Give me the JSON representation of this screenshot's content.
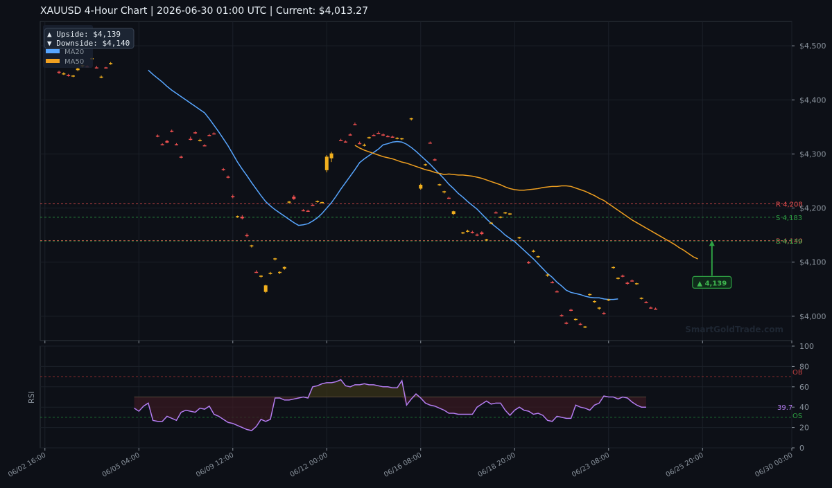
{
  "title": "XAUUSD  4-Hour Chart  |  2026-06-30 01:00 UTC  |  Current: $4,013.27",
  "watermark": "SmartGoldTrade.com",
  "info_box": {
    "upside": "▲ Upside:   $4,139",
    "downside": "▼ Downside: $4,140"
  },
  "legend": [
    {
      "label": "MA20",
      "color": "#58a6ff"
    },
    {
      "label": "MA50",
      "color": "#f0a020"
    }
  ],
  "colors": {
    "up": "#f2b01e",
    "down": "#f05050",
    "ma20": "#58a6ff",
    "ma50": "#f0a020",
    "rsi": "#b37cf0",
    "support": "#2ea043",
    "resistance": "#f05050"
  },
  "chart_data": [
    {
      "type": "candlestick",
      "ylabel": "",
      "ylim": [
        3955,
        4545
      ],
      "y_ticks": [
        {
          "value": 4000,
          "label": "$4,000"
        },
        {
          "value": 4100,
          "label": "$4,100"
        },
        {
          "value": 4200,
          "label": "$4,200"
        },
        {
          "value": 4300,
          "label": "$4,300"
        },
        {
          "value": 4400,
          "label": "$4,400"
        },
        {
          "value": 4500,
          "label": "$4,500"
        }
      ],
      "x_range": [
        -1,
        159
      ],
      "x_ticks": [
        {
          "index": 0,
          "label": "06/02 16:00"
        },
        {
          "index": 20,
          "label": "06/05 04:00"
        },
        {
          "index": 40,
          "label": "06/09 12:00"
        },
        {
          "index": 60,
          "label": "06/12 00:00"
        },
        {
          "index": 80,
          "label": "06/16 08:00"
        },
        {
          "index": 100,
          "label": "06/18 20:00"
        },
        {
          "index": 120,
          "label": "06/23 08:00"
        },
        {
          "index": 140,
          "label": "06/25 20:00"
        },
        {
          "index": 159,
          "label": "06/30 00:00"
        }
      ],
      "levels": [
        {
          "label": "R 4,208",
          "value": 4208,
          "kind": "resistance"
        },
        {
          "label": "S 4,183",
          "value": 4183,
          "kind": "support"
        },
        {
          "label": "R 4,140",
          "value": 4140,
          "kind": "resistance"
        },
        {
          "label": "S 4,139",
          "value": 4139,
          "kind": "support"
        }
      ],
      "target_marker": {
        "label": "▲ 4,139",
        "index": 142,
        "value": 4139
      },
      "candles": [
        [
          4452,
          4454,
          4448,
          4450
        ],
        [
          4448,
          4451,
          4446,
          4449
        ],
        [
          4446,
          4448,
          4443,
          4444
        ],
        [
          4444,
          4446,
          4442,
          4445
        ],
        [
          4455,
          4460,
          4453,
          4458
        ],
        [
          4462,
          4465,
          4460,
          4464
        ],
        [
          4462,
          4464,
          4460,
          4461
        ],
        [
          4476,
          4478,
          4474,
          4477
        ],
        [
          4460,
          4463,
          4458,
          4459
        ],
        [
          4442,
          4445,
          4440,
          4443
        ],
        [
          4460,
          4461,
          4458,
          4459
        ],
        [
          4467,
          4470,
          4465,
          4468
        ],
        [
          4334,
          4336,
          4331,
          4332
        ],
        [
          4318,
          4320,
          4316,
          4317
        ],
        [
          4324,
          4326,
          4320,
          4321
        ],
        [
          4343,
          4345,
          4340,
          4341
        ],
        [
          4318,
          4320,
          4316,
          4317
        ],
        [
          4295,
          4297,
          4292,
          4294
        ],
        [
          4328,
          4332,
          4325,
          4327
        ],
        [
          4340,
          4342,
          4337,
          4338
        ],
        [
          4325,
          4328,
          4323,
          4326
        ],
        [
          4316,
          4318,
          4314,
          4315
        ],
        [
          4335,
          4337,
          4333,
          4334
        ],
        [
          4338,
          4340,
          4336,
          4337
        ],
        [
          4272,
          4274,
          4269,
          4270
        ],
        [
          4258,
          4260,
          4255,
          4257
        ],
        [
          4222,
          4225,
          4218,
          4220
        ],
        [
          4184,
          4186,
          4182,
          4185
        ],
        [
          4184,
          4187,
          4179,
          4181
        ],
        [
          4150,
          4153,
          4146,
          4149
        ],
        [
          4130,
          4132,
          4127,
          4131
        ],
        [
          4082,
          4085,
          4080,
          4081
        ],
        [
          4073,
          4076,
          4071,
          4075
        ],
        [
          4045,
          4058,
          4043,
          4057
        ],
        [
          4079,
          4082,
          4077,
          4080
        ],
        [
          4105,
          4108,
          4103,
          4107
        ],
        [
          4080,
          4083,
          4078,
          4082
        ],
        [
          4088,
          4092,
          4086,
          4091
        ],
        [
          4210,
          4213,
          4208,
          4212
        ],
        [
          4221,
          4224,
          4215,
          4217
        ],
        [
          4196,
          4198,
          4194,
          4195
        ],
        [
          4195,
          4197,
          4193,
          4194
        ],
        [
          4206,
          4208,
          4204,
          4205
        ],
        [
          4212,
          4214,
          4210,
          4213
        ],
        [
          4210,
          4212,
          4208,
          4211
        ],
        [
          4270,
          4298,
          4266,
          4295
        ],
        [
          4292,
          4304,
          4285,
          4301
        ],
        [
          4326,
          4328,
          4324,
          4325
        ],
        [
          4323,
          4325,
          4321,
          4322
        ],
        [
          4336,
          4338,
          4334,
          4335
        ],
        [
          4355,
          4358,
          4353,
          4354
        ],
        [
          4320,
          4323,
          4318,
          4319
        ],
        [
          4316,
          4319,
          4314,
          4317
        ],
        [
          4330,
          4332,
          4328,
          4331
        ],
        [
          4335,
          4337,
          4333,
          4334
        ],
        [
          4339,
          4342,
          4337,
          4338
        ],
        [
          4336,
          4338,
          4333,
          4335
        ],
        [
          4333,
          4335,
          4331,
          4332
        ],
        [
          4332,
          4334,
          4330,
          4331
        ],
        [
          4329,
          4331,
          4327,
          4330
        ],
        [
          4328,
          4330,
          4326,
          4329
        ],
        [
          4364,
          4367,
          4362,
          4366
        ],
        [
          4236,
          4245,
          4234,
          4243
        ],
        [
          4280,
          4282,
          4278,
          4281
        ],
        [
          4321,
          4323,
          4319,
          4320
        ],
        [
          4290,
          4292,
          4287,
          4288
        ],
        [
          4243,
          4245,
          4241,
          4244
        ],
        [
          4229,
          4232,
          4227,
          4231
        ],
        [
          4219,
          4221,
          4217,
          4218
        ],
        [
          4189,
          4195,
          4187,
          4194
        ],
        [
          4154,
          4156,
          4152,
          4155
        ],
        [
          4157,
          4160,
          4155,
          4158
        ],
        [
          4156,
          4158,
          4153,
          4154
        ],
        [
          4151,
          4153,
          4148,
          4150
        ],
        [
          4155,
          4157,
          4150,
          4152
        ],
        [
          4141,
          4143,
          4139,
          4142
        ],
        [
          4172,
          4174,
          4170,
          4173
        ],
        [
          4192,
          4194,
          4190,
          4191
        ],
        [
          4183,
          4185,
          4181,
          4184
        ],
        [
          4191,
          4193,
          4189,
          4192
        ],
        [
          4189,
          4191,
          4187,
          4190
        ],
        [
          4145,
          4147,
          4143,
          4146
        ],
        [
          4100,
          4102,
          4097,
          4098
        ],
        [
          4120,
          4123,
          4118,
          4121
        ],
        [
          4110,
          4112,
          4108,
          4111
        ],
        [
          4075,
          4078,
          4073,
          4077
        ],
        [
          4063,
          4065,
          4061,
          4062
        ],
        [
          4046,
          4048,
          4044,
          4045
        ],
        [
          4002,
          4004,
          3999,
          4001
        ],
        [
          3988,
          3990,
          3985,
          3987
        ],
        [
          4012,
          4014,
          4009,
          4010
        ],
        [
          3994,
          3996,
          3992,
          3995
        ],
        [
          3986,
          3988,
          3983,
          3985
        ],
        [
          3980,
          3982,
          3978,
          3981
        ],
        [
          4040,
          4042,
          4038,
          4041
        ],
        [
          4027,
          4029,
          4025,
          4028
        ],
        [
          4015,
          4017,
          4012,
          4016
        ],
        [
          4006,
          4008,
          4003,
          4005
        ],
        [
          4030,
          4032,
          4028,
          4031
        ],
        [
          4090,
          4092,
          4088,
          4091
        ],
        [
          4070,
          4072,
          4068,
          4071
        ],
        [
          4075,
          4077,
          4072,
          4074
        ],
        [
          4062,
          4064,
          4058,
          4060
        ],
        [
          4066,
          4068,
          4064,
          4065
        ],
        [
          4060,
          4062,
          4058,
          4061
        ],
        [
          4033,
          4035,
          4031,
          4034
        ],
        [
          4026,
          4028,
          4024,
          4025
        ],
        [
          4016,
          4018,
          4014,
          4015
        ],
        [
          4014,
          4016,
          4012,
          4013
        ]
      ],
      "candle_index": [
        3,
        4,
        5,
        6,
        7,
        8,
        9,
        10,
        11,
        12,
        13,
        14,
        24,
        25,
        26,
        27,
        28,
        29,
        31,
        32,
        33,
        34,
        35,
        36,
        38,
        39,
        40,
        41,
        42,
        43,
        44,
        45,
        46,
        47,
        48,
        49,
        50,
        51,
        52,
        53,
        55,
        56,
        57,
        58,
        59,
        60,
        61,
        63,
        64,
        65,
        66,
        67,
        68,
        69,
        70,
        71,
        72,
        73,
        74,
        75,
        76,
        78,
        80,
        81,
        82,
        83,
        84,
        85,
        86,
        87,
        89,
        90,
        91,
        92,
        93,
        94,
        95,
        96,
        97,
        98,
        99,
        101,
        103,
        104,
        105,
        107,
        108,
        109,
        110,
        111,
        112,
        113,
        114,
        115,
        116,
        117,
        118,
        119,
        120,
        121,
        122,
        123,
        124,
        125,
        126,
        127,
        128,
        129,
        130
      ],
      "ma20": {
        "start_index": 22,
        "values": [
          4455,
          4447,
          4440,
          4433,
          4425,
          4418,
          4412,
          4406,
          4400,
          4394,
          4388,
          4382,
          4376,
          4365,
          4353,
          4341,
          4328,
          4315,
          4300,
          4285,
          4272,
          4260,
          4247,
          4235,
          4223,
          4212,
          4204,
          4197,
          4191,
          4185,
          4179,
          4173,
          4168,
          4169,
          4171,
          4176,
          4182,
          4190,
          4200,
          4210,
          4222,
          4235,
          4247,
          4259,
          4271,
          4284,
          4291,
          4297,
          4303,
          4309,
          4317,
          4319,
          4322,
          4323,
          4322,
          4318,
          4312,
          4305,
          4297,
          4289,
          4281,
          4272,
          4263,
          4254,
          4244,
          4236,
          4227,
          4220,
          4212,
          4205,
          4198,
          4189,
          4180,
          4172,
          4165,
          4158,
          4150,
          4144,
          4138,
          4130,
          4122,
          4114,
          4106,
          4097,
          4088,
          4079,
          4072,
          4063,
          4056,
          4048,
          4044,
          4042,
          4040,
          4037,
          4035,
          4034,
          4034,
          4032,
          4031,
          4031,
          4032
        ]
      },
      "ma50": {
        "start_index": 66,
        "values": [
          4316,
          4311,
          4307,
          4304,
          4301,
          4298,
          4295,
          4293,
          4291,
          4288,
          4285,
          4283,
          4280,
          4277,
          4274,
          4271,
          4269,
          4266,
          4264,
          4262,
          4263,
          4262,
          4261,
          4261,
          4260,
          4259,
          4257,
          4255,
          4252,
          4249,
          4246,
          4243,
          4239,
          4236,
          4234,
          4233,
          4233,
          4234,
          4235,
          4236,
          4238,
          4239,
          4240,
          4240,
          4241,
          4241,
          4240,
          4237,
          4234,
          4231,
          4227,
          4223,
          4218,
          4214,
          4208,
          4202,
          4196,
          4190,
          4184,
          4178,
          4173,
          4168,
          4163,
          4158,
          4153,
          4148,
          4143,
          4138,
          4133,
          4127,
          4122,
          4116,
          4110,
          4106
        ]
      }
    },
    {
      "type": "line",
      "ylabel": "RSI",
      "ylim": [
        0,
        100
      ],
      "y_ticks": [
        0,
        20,
        40,
        60,
        80,
        100
      ],
      "overbought": {
        "value": 70,
        "label": "OB"
      },
      "oversold": {
        "value": 30,
        "label": "OS"
      },
      "midline": 50,
      "last_label": "39.7",
      "start_index": 19,
      "values": [
        39,
        36,
        41,
        44,
        27,
        26,
        26,
        31,
        29,
        27,
        35,
        37,
        36,
        35,
        39,
        38,
        41,
        33,
        31,
        28,
        25,
        24,
        22,
        20,
        18,
        17,
        21,
        28,
        26,
        28,
        49,
        49,
        47,
        47,
        48,
        49,
        50,
        49,
        60,
        61,
        63,
        64,
        64,
        65,
        67,
        61,
        60,
        62,
        62,
        63,
        62,
        62,
        61,
        60,
        60,
        59,
        59,
        66,
        42,
        48,
        53,
        49,
        44,
        42,
        41,
        39,
        37,
        34,
        34,
        33,
        33,
        33,
        33,
        40,
        43,
        46,
        43,
        44,
        44,
        37,
        32,
        37,
        40,
        37,
        36,
        33,
        34,
        32,
        27,
        26,
        31,
        30,
        29,
        29,
        42,
        40,
        39,
        37,
        42,
        44,
        51,
        50,
        50,
        48,
        50,
        49,
        45,
        42,
        40,
        40
      ]
    }
  ]
}
